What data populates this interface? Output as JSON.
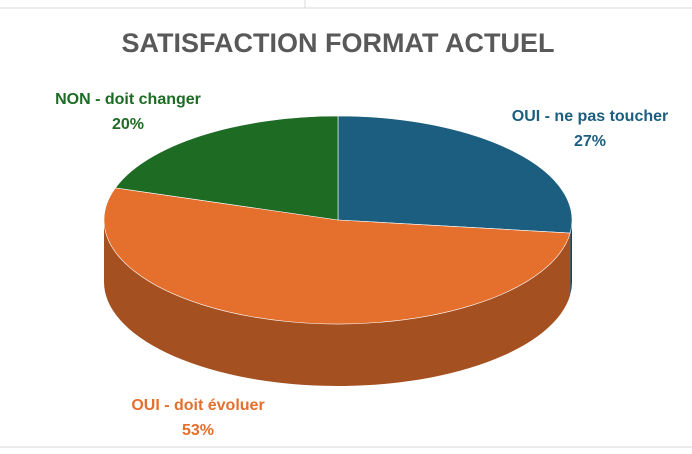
{
  "chart_data": {
    "type": "pie",
    "title": "SATISFACTION FORMAT ACTUEL",
    "categories": [
      "OUI - ne pas toucher",
      "OUI  - doit évoluer",
      "NON - doit changer"
    ],
    "values": [
      27,
      53,
      20
    ],
    "value_labels": [
      "27%",
      "53%",
      "20%"
    ],
    "colors": [
      "#1b5e80",
      "#e56f2c",
      "#1e6b24"
    ]
  }
}
